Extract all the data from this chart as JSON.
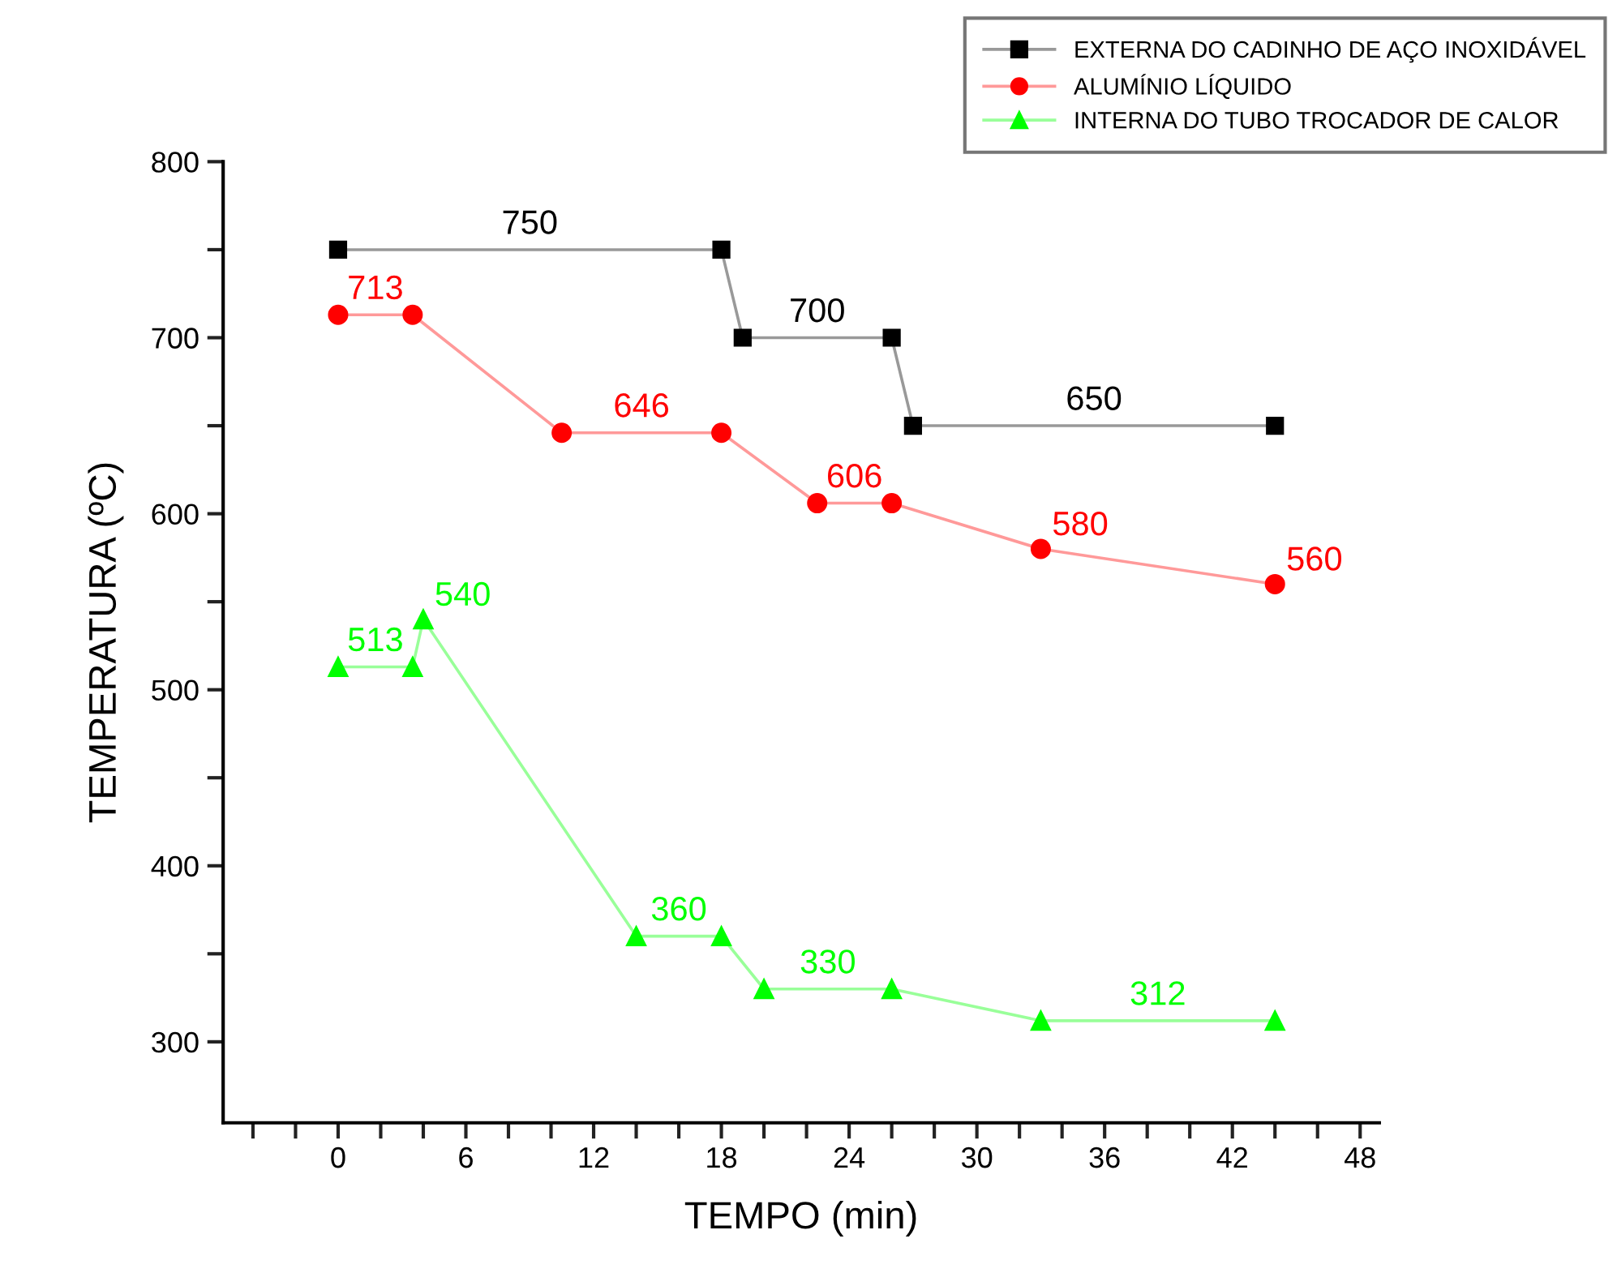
{
  "chart_data": {
    "type": "line",
    "xlabel": "TEMPO (min)",
    "ylabel": "TEMPERATURA (ºC)",
    "xlim": [
      -5.4,
      48.9
    ],
    "ylim": [
      254,
      800
    ],
    "xticks": [
      {
        "value": -4,
        "label": null
      },
      {
        "value": -2,
        "label": null
      },
      0,
      {
        "value": 2,
        "label": null
      },
      {
        "value": 4,
        "label": null
      },
      6,
      {
        "value": 8,
        "label": null
      },
      {
        "value": 10,
        "label": null
      },
      12,
      {
        "value": 14,
        "label": null
      },
      {
        "value": 16,
        "label": null
      },
      18,
      {
        "value": 20,
        "label": null
      },
      {
        "value": 22,
        "label": null
      },
      24,
      {
        "value": 26,
        "label": null
      },
      {
        "value": 28,
        "label": null
      },
      30,
      {
        "value": 32,
        "label": null
      },
      {
        "value": 34,
        "label": null
      },
      36,
      {
        "value": 38,
        "label": null
      },
      {
        "value": 40,
        "label": null
      },
      42,
      {
        "value": 44,
        "label": null
      },
      {
        "value": 46,
        "label": null
      },
      48
    ],
    "yticks": [
      300,
      {
        "value": 350,
        "label": null
      },
      400,
      {
        "value": 450,
        "label": null
      },
      500,
      {
        "value": 550,
        "label": null
      },
      600,
      {
        "value": 650,
        "label": null
      },
      700,
      {
        "value": 750,
        "label": null
      },
      800
    ],
    "grid": false,
    "legend": "top right",
    "annotations": [
      {
        "text": "750",
        "x": 9,
        "y": 750
      },
      {
        "text": "650",
        "x": 35.5,
        "y": 650
      },
      {
        "text": "312",
        "x": 38.5,
        "y": 312
      }
    ],
    "series": [
      {
        "name": "EXTERNA DO CADINHO DE AÇO INOXIDÁVEL",
        "color": "#000000",
        "marker": "square",
        "x": [
          0,
          18,
          19,
          26,
          27,
          44
        ],
        "values": [
          750,
          750,
          700,
          700,
          650,
          650
        ],
        "value_labels": [
          null,
          null,
          "700",
          null,
          null,
          null
        ]
      },
      {
        "name": "ALUMÍNIO LÍQUIDO",
        "color": "#ff0000",
        "marker": "circle",
        "x": [
          0,
          3.5,
          10.5,
          18,
          22.5,
          26,
          33,
          44
        ],
        "values": [
          713,
          713,
          646,
          646,
          606,
          606,
          580,
          560
        ],
        "value_labels": [
          "713",
          null,
          "646",
          null,
          "606",
          null,
          "580",
          "560"
        ]
      },
      {
        "name": "INTERNA DO TUBO TROCADOR DE CALOR",
        "color": "#00ff00",
        "marker": "triangle",
        "x": [
          0,
          3.5,
          4,
          14,
          18,
          20,
          26,
          33,
          44
        ],
        "values": [
          513,
          513,
          540,
          360,
          360,
          330,
          330,
          312,
          312
        ],
        "value_labels": [
          "513",
          null,
          "540",
          "360",
          null,
          "330",
          null,
          null,
          null
        ]
      }
    ]
  }
}
